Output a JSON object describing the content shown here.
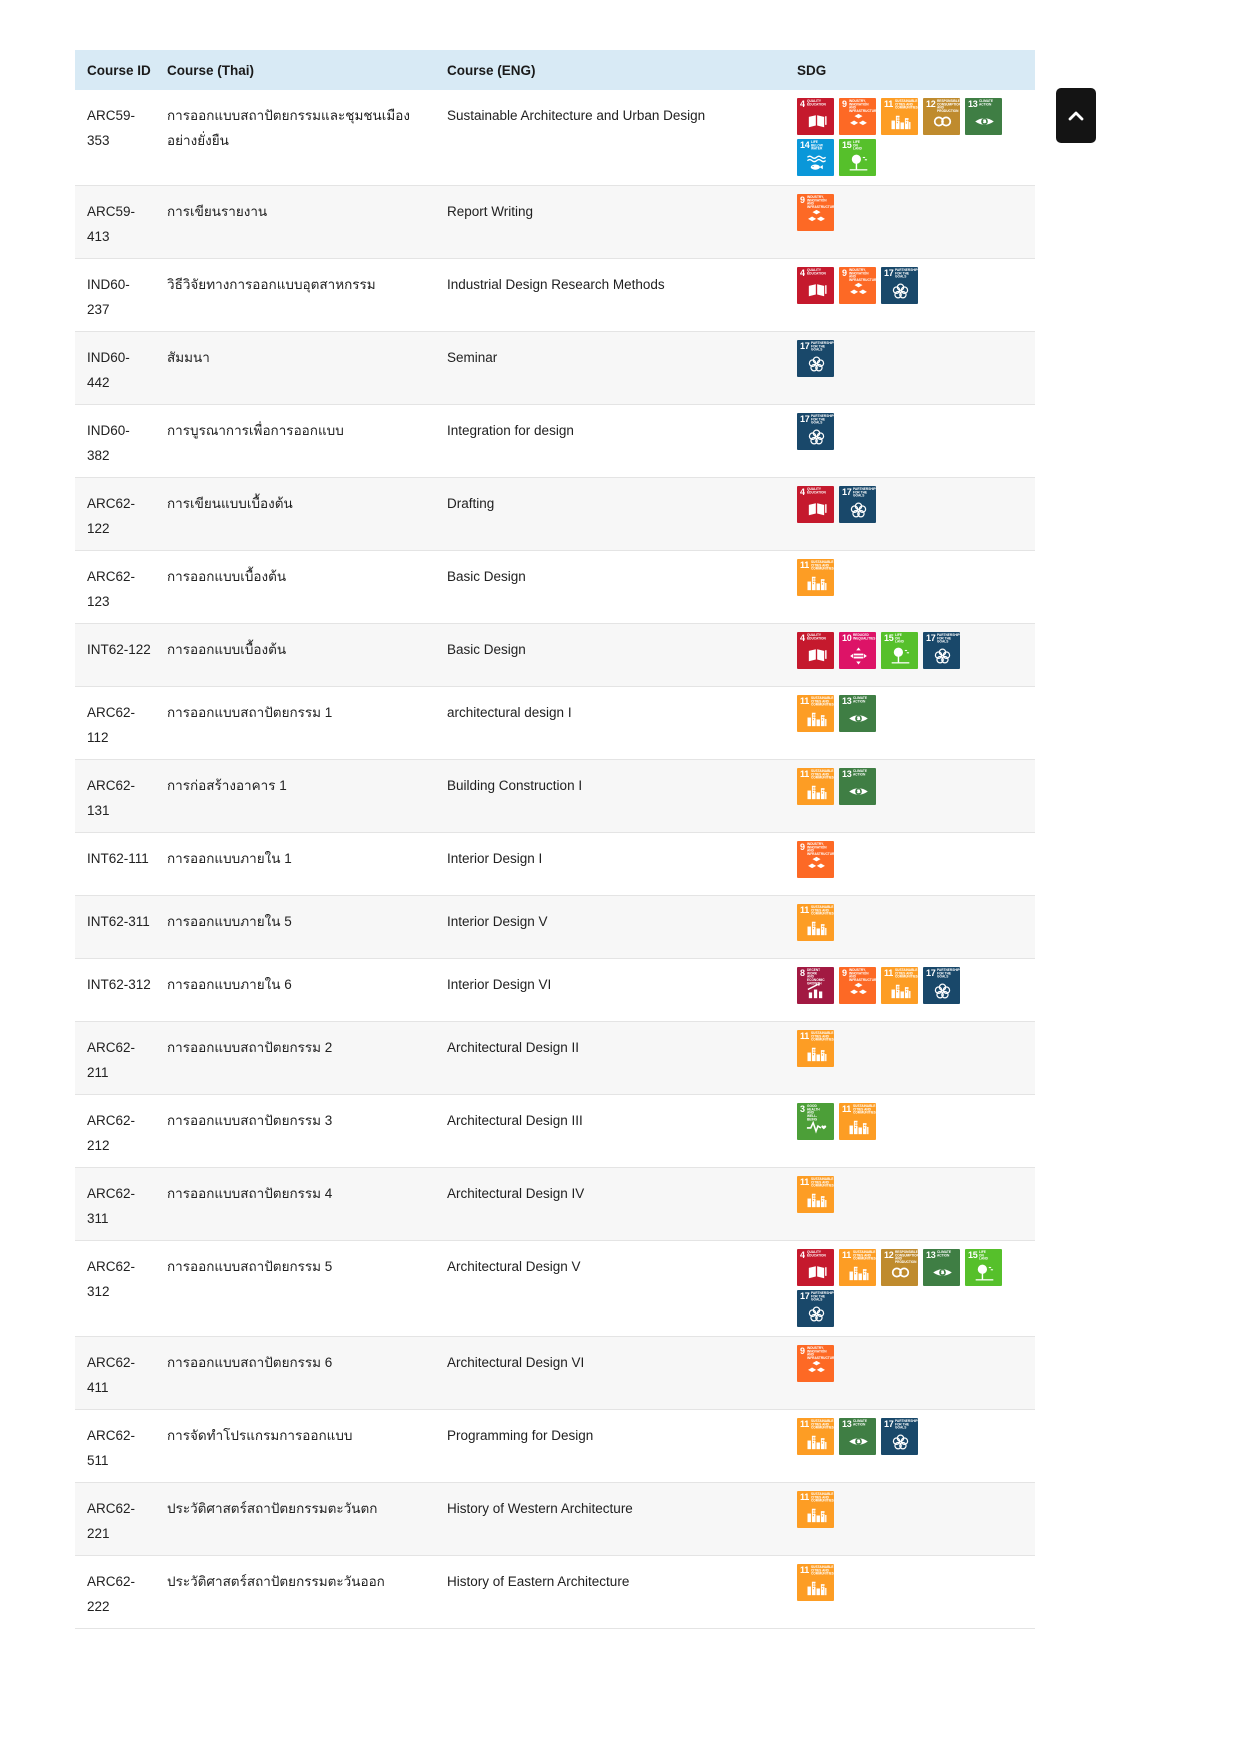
{
  "table": {
    "columns": [
      "Course ID",
      "Course (Thai)",
      "Course (ENG)",
      "SDG"
    ]
  },
  "scroll_top": {
    "icon": "chevron-up-icon"
  },
  "colors": {
    "header_bg": "#d8eaf5",
    "row_alt_bg": "#f7f7f7",
    "row_border": "#e4e4e4",
    "text": "#212121",
    "scroll_button_bg": "#141414"
  },
  "sdg_catalog": {
    "3": {
      "number": "3",
      "title": "GOOD HEALTH AND WELL-BEING",
      "color": "#4C9F38",
      "icon": "ecg-heart-icon"
    },
    "4": {
      "number": "4",
      "title": "QUALITY EDUCATION",
      "color": "#C5192D",
      "icon": "open-book-icon"
    },
    "8": {
      "number": "8",
      "title": "DECENT WORK AND ECONOMIC GROWTH",
      "color": "#A21942",
      "icon": "growth-chart-icon"
    },
    "9": {
      "number": "9",
      "title": "INDUSTRY, INNOVATION AND INFRASTRUCTURE",
      "color": "#FD6925",
      "icon": "cubes-icon"
    },
    "10": {
      "number": "10",
      "title": "REDUCED INEQUALITIES",
      "color": "#DD1367",
      "icon": "equality-icon"
    },
    "11": {
      "number": "11",
      "title": "SUSTAINABLE CITIES AND COMMUNITIES",
      "color": "#FD9D24",
      "icon": "city-buildings-icon"
    },
    "12": {
      "number": "12",
      "title": "RESPONSIBLE CONSUMPTION AND PRODUCTION",
      "color": "#BF8B2E",
      "icon": "infinity-icon"
    },
    "13": {
      "number": "13",
      "title": "CLIMATE ACTION",
      "color": "#3F7E44",
      "icon": "eye-globe-icon"
    },
    "14": {
      "number": "14",
      "title": "LIFE BELOW WATER",
      "color": "#0A97D9",
      "icon": "fish-waves-icon"
    },
    "15": {
      "number": "15",
      "title": "LIFE ON LAND",
      "color": "#56C02B",
      "icon": "tree-icon"
    },
    "17": {
      "number": "17",
      "title": "PARTNERSHIPS FOR THE GOALS",
      "color": "#19486A",
      "icon": "interlocking-rings-icon"
    }
  },
  "rows": [
    {
      "course_id": "ARC59-353",
      "course_thai": "การออกแบบสถาปัตยกรรมและชุมชนเมืองอย่างยั่งยืน",
      "course_eng": "Sustainable Architecture and Urban Design",
      "sdgs": [
        4,
        9,
        11,
        12,
        13,
        14,
        15
      ]
    },
    {
      "course_id": "ARC59-413",
      "course_thai": "การเขียนรายงาน",
      "course_eng": "Report Writing",
      "sdgs": [
        9
      ]
    },
    {
      "course_id": "IND60-237",
      "course_thai": "วิธีวิจัยทางการออกแบบอุตสาหกรรม",
      "course_eng": "Industrial Design Research Methods",
      "sdgs": [
        4,
        9,
        17
      ]
    },
    {
      "course_id": "IND60-442",
      "course_thai": "สัมมนา",
      "course_eng": "Seminar",
      "sdgs": [
        17
      ]
    },
    {
      "course_id": "IND60-382",
      "course_thai": "การบูรณาการเพื่อการออกแบบ",
      "course_eng": "Integration for design",
      "sdgs": [
        17
      ]
    },
    {
      "course_id": "ARC62-122",
      "course_thai": "การเขียนแบบเบื้องต้น",
      "course_eng": "Drafting",
      "sdgs": [
        4,
        17
      ]
    },
    {
      "course_id": "ARC62-123",
      "course_thai": "การออกแบบเบื้องต้น",
      "course_eng": "Basic Design",
      "sdgs": [
        11
      ]
    },
    {
      "course_id": "INT62-122",
      "course_thai": "การออกแบบเบื้องต้น",
      "course_eng": "Basic Design",
      "sdgs": [
        4,
        10,
        15,
        17
      ]
    },
    {
      "course_id": "ARC62-112",
      "course_thai": "การออกแบบสถาปัตยกรรม 1",
      "course_eng": "architectural design I",
      "sdgs": [
        11,
        13
      ]
    },
    {
      "course_id": "ARC62-131",
      "course_thai": "การก่อสร้างอาคาร 1",
      "course_eng": "Building Construction I",
      "sdgs": [
        11,
        13
      ]
    },
    {
      "course_id": "INT62-111",
      "course_thai": "การออกแบบภายใน 1",
      "course_eng": "Interior Design I",
      "sdgs": [
        9
      ]
    },
    {
      "course_id": "INT62-311",
      "course_thai": "การออกแบบภายใน 5",
      "course_eng": "Interior Design V",
      "sdgs": [
        11
      ]
    },
    {
      "course_id": "INT62-312",
      "course_thai": "การออกแบบภายใน 6",
      "course_eng": "Interior Design VI",
      "sdgs": [
        8,
        9,
        11,
        17
      ]
    },
    {
      "course_id": "ARC62-211",
      "course_thai": "การออกแบบสถาปัตยกรรม 2",
      "course_eng": "Architectural Design II",
      "sdgs": [
        11
      ]
    },
    {
      "course_id": "ARC62-212",
      "course_thai": "การออกแบบสถาปัตยกรรม 3",
      "course_eng": "Architectural Design III",
      "sdgs": [
        3,
        11
      ]
    },
    {
      "course_id": "ARC62-311",
      "course_thai": "การออกแบบสถาปัตยกรรม 4",
      "course_eng": "Architectural Design IV",
      "sdgs": [
        11
      ]
    },
    {
      "course_id": "ARC62-312",
      "course_thai": "การออกแบบสถาปัตยกรรม 5",
      "course_eng": "Architectural Design V",
      "sdgs": [
        4,
        11,
        12,
        13,
        15,
        17
      ]
    },
    {
      "course_id": "ARC62-411",
      "course_thai": "การออกแบบสถาปัตยกรรม 6",
      "course_eng": "Architectural Design VI",
      "sdgs": [
        9
      ]
    },
    {
      "course_id": "ARC62-511",
      "course_thai": "การจัดทำโปรแกรมการออกแบบ",
      "course_eng": "Programming for Design",
      "sdgs": [
        11,
        13,
        17
      ]
    },
    {
      "course_id": "ARC62-221",
      "course_thai": "ประวัติศาสตร์สถาปัตยกรรมตะวันตก",
      "course_eng": "History of Western Architecture",
      "sdgs": [
        11
      ]
    },
    {
      "course_id": "ARC62-222",
      "course_thai": "ประวัติศาสตร์สถาปัตยกรรมตะวันออก",
      "course_eng": "History of Eastern Architecture",
      "sdgs": [
        11
      ]
    }
  ]
}
